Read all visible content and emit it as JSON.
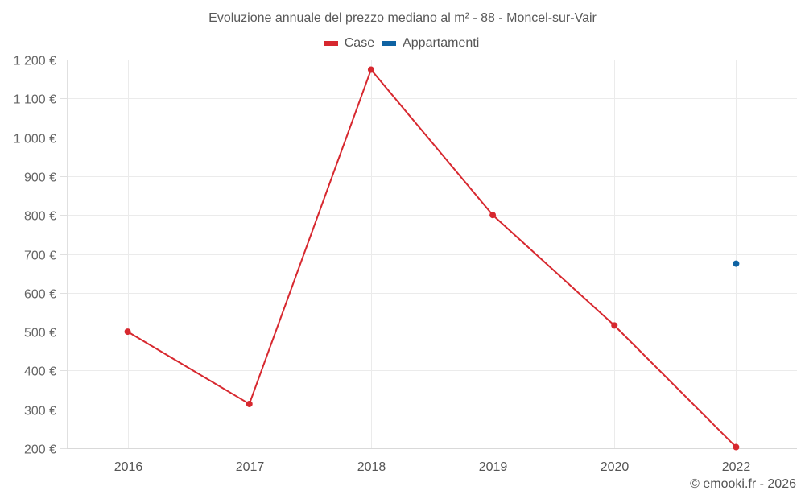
{
  "header": {
    "title": "Evoluzione annuale del prezzo mediano al m² - 88 - Moncel-sur-Vair"
  },
  "legend": [
    {
      "label": "Case",
      "color": "#d7282f"
    },
    {
      "label": "Appartamenti",
      "color": "#0f63a3"
    }
  ],
  "footer": {
    "credit": "© emooki.fr - 2026"
  },
  "chart_data": {
    "type": "line",
    "title": "Evoluzione annuale del prezzo mediano al m² - 88 - Moncel-sur-Vair",
    "xlabel": "",
    "ylabel": "",
    "categories": [
      "2016",
      "2017",
      "2018",
      "2019",
      "2020",
      "2022"
    ],
    "series": [
      {
        "name": "Case",
        "color": "#d7282f",
        "values": [
          500,
          314,
          1174,
          800,
          516,
          203
        ]
      },
      {
        "name": "Appartamenti",
        "color": "#0f63a3",
        "values": [
          null,
          null,
          null,
          null,
          null,
          675
        ]
      }
    ],
    "ylim": [
      200,
      1200
    ],
    "yticks": [
      200,
      300,
      400,
      500,
      600,
      700,
      800,
      900,
      1000,
      1100,
      1200
    ],
    "ytick_labels": [
      "200 €",
      "300 €",
      "400 €",
      "500 €",
      "600 €",
      "700 €",
      "800 €",
      "900 €",
      "1 000 €",
      "1 100 €",
      "1 200 €"
    ],
    "grid": true,
    "legend_position": "top"
  }
}
